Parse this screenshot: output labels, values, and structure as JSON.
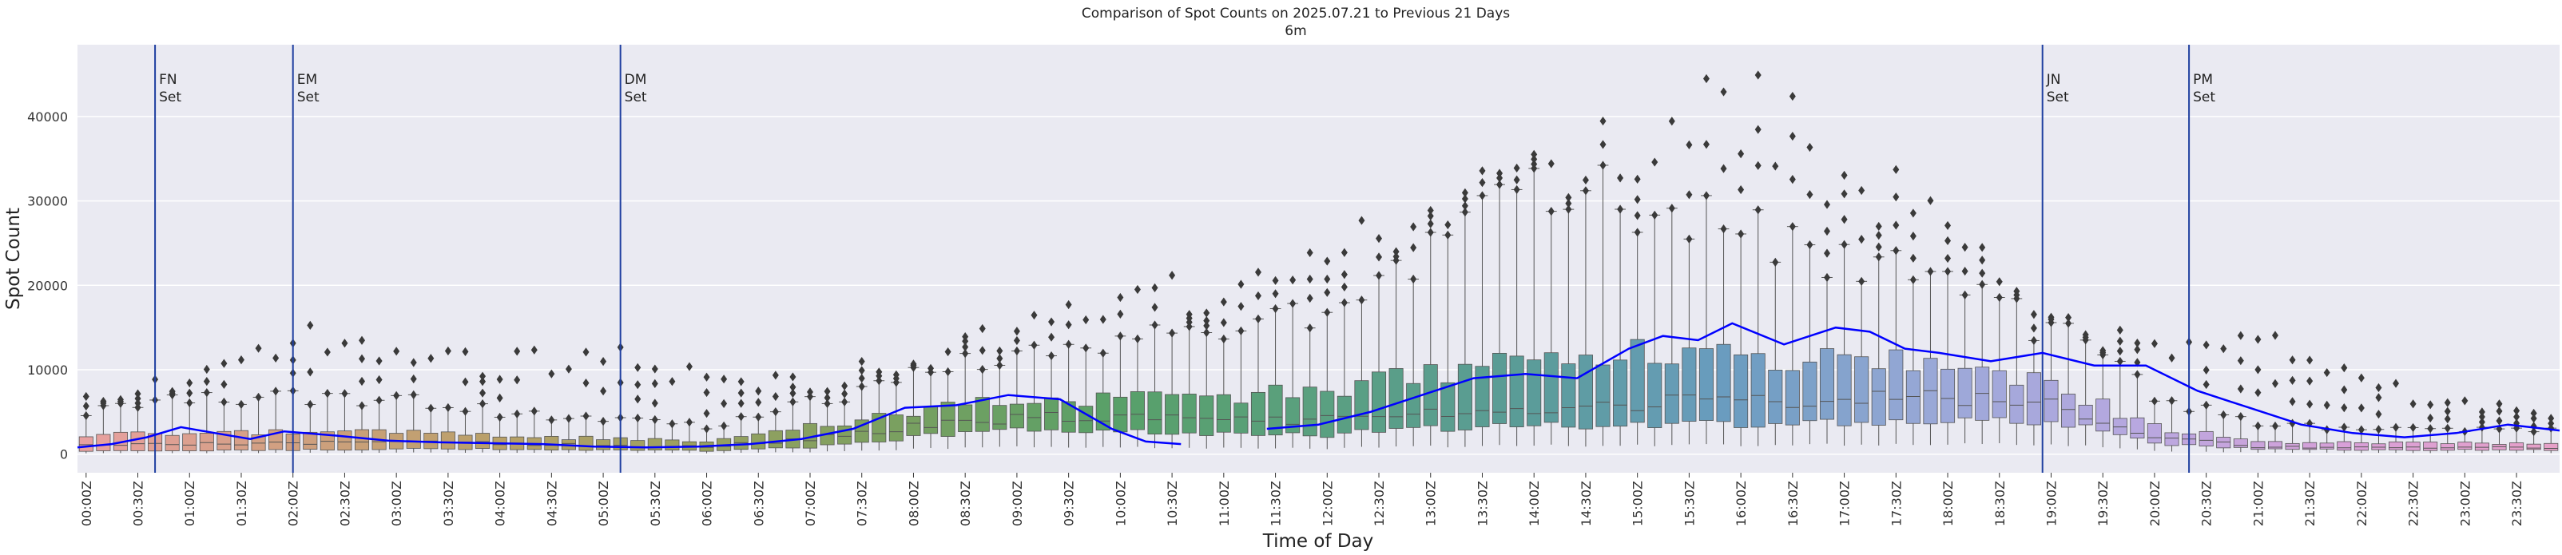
{
  "chart_data": {
    "type": "box",
    "title": "Comparison of Spot Counts on 2025.07.21 to Previous 21 Days",
    "subtitle": "6m",
    "xlabel": "Time of Day",
    "ylabel": "Spot Count",
    "ylim": [
      -2200,
      48500
    ],
    "yticks": [
      0,
      10000,
      20000,
      30000,
      40000
    ],
    "x_interval_minutes": 10,
    "x_tick_labels": [
      "00:00Z",
      "00:30Z",
      "01:00Z",
      "01:30Z",
      "02:00Z",
      "02:30Z",
      "03:00Z",
      "03:30Z",
      "04:00Z",
      "04:30Z",
      "05:00Z",
      "05:30Z",
      "06:00Z",
      "06:30Z",
      "07:00Z",
      "07:30Z",
      "08:00Z",
      "08:30Z",
      "09:00Z",
      "09:30Z",
      "10:00Z",
      "10:30Z",
      "11:00Z",
      "11:30Z",
      "12:00Z",
      "12:30Z",
      "13:00Z",
      "13:30Z",
      "14:00Z",
      "14:30Z",
      "15:00Z",
      "15:30Z",
      "16:00Z",
      "16:30Z",
      "17:00Z",
      "17:30Z",
      "18:00Z",
      "18:30Z",
      "19:00Z",
      "19:30Z",
      "20:00Z",
      "20:30Z",
      "21:00Z",
      "21:30Z",
      "22:00Z",
      "22:30Z",
      "23:00Z",
      "23:30Z"
    ],
    "grid": true,
    "background": "#eaeaf2",
    "line_color": "#0000ff",
    "box_colors": [
      "#e8a0a0",
      "#d0a080",
      "#b8a068",
      "#98a060",
      "#78a060",
      "#58a068",
      "#5aa080",
      "#5a9c98",
      "#6a9cc0",
      "#9aa8d8",
      "#b8a8e0",
      "#d8a0d8",
      "#e6a0c8"
    ],
    "events": [
      {
        "x_minutes": 45,
        "label": "FN\nSet"
      },
      {
        "x_minutes": 125,
        "label": "EM\nSet"
      },
      {
        "x_minutes": 315,
        "label": "DM\nSet"
      },
      {
        "x_minutes": 1225,
        "label": "PM\nSet"
      },
      {
        "x_minutes": 1145,
        "label": "JN\nSet",
        "override_hours": 19,
        "override_min": 0
      }
    ],
    "median_profile": {
      "x_hours": [
        0,
        1,
        2,
        3,
        4,
        5,
        6,
        7,
        8,
        9,
        10,
        11,
        12,
        13,
        14,
        15,
        16,
        17,
        18,
        19,
        20,
        21,
        22,
        23,
        24
      ],
      "q1": [
        400,
        400,
        500,
        600,
        600,
        500,
        400,
        800,
        2000,
        2800,
        2900,
        2300,
        2300,
        3000,
        3300,
        3600,
        3700,
        3900,
        4200,
        3900,
        1300,
        600,
        500,
        500,
        500
      ],
      "median": [
        1000,
        1200,
        1300,
        1400,
        1300,
        1000,
        900,
        1800,
        3300,
        4300,
        4500,
        4000,
        4000,
        5000,
        5600,
        6000,
        6400,
        6600,
        6700,
        5700,
        2000,
        900,
        800,
        800,
        800
      ],
      "q3": [
        2200,
        2500,
        2600,
        2600,
        2300,
        1800,
        1500,
        3200,
        5200,
        6500,
        6600,
        6800,
        7500,
        9500,
        11000,
        12000,
        11800,
        11200,
        10500,
        8500,
        3200,
        1500,
        1300,
        1300,
        1300
      ],
      "whisker_hi": [
        5000,
        6500,
        7000,
        6500,
        5000,
        4000,
        3500,
        6000,
        9500,
        12000,
        13000,
        15000,
        18000,
        25000,
        30000,
        30000,
        27000,
        24000,
        20000,
        15000,
        7000,
        3500,
        3000,
        3000,
        3000
      ],
      "outlier_hi": [
        6500,
        9000,
        14000,
        12500,
        11500,
        11500,
        9000,
        8500,
        11000,
        15000,
        18000,
        20000,
        24000,
        28000,
        33000,
        37000,
        42000,
        35000,
        26000,
        14000,
        13000,
        16000,
        8500,
        6000,
        5000
      ]
    },
    "current_day": {
      "x_hours": [
        0,
        0.33,
        0.67,
        1,
        1.33,
        1.67,
        2,
        2.5,
        3,
        3.5,
        4,
        4.5,
        5,
        5.5,
        6,
        6.5,
        7,
        7.5,
        8,
        8.5,
        9,
        9.5,
        10,
        10.33,
        10.67,
        11,
        11.5,
        12,
        12.5,
        13,
        13.5,
        14,
        14.5,
        15,
        15.33,
        15.67,
        16,
        16.5,
        17,
        17.33,
        17.67,
        18,
        18.5,
        19,
        19.5,
        20,
        20.5,
        21,
        21.5,
        22,
        22.5,
        23,
        23.5,
        24
      ],
      "values": [
        800,
        1200,
        2000,
        3200,
        2500,
        1800,
        2700,
        2200,
        1600,
        1400,
        1300,
        1200,
        900,
        800,
        900,
        1200,
        1800,
        3000,
        5500,
        5800,
        7000,
        6500,
        3000,
        1500,
        1200,
        null,
        3000,
        3500,
        5000,
        7000,
        9000,
        9500,
        9000,
        12500,
        14000,
        13500,
        15500,
        13000,
        15000,
        14500,
        12500,
        12000,
        11000,
        12000,
        10500,
        10500,
        7500,
        5500,
        3500,
        2500,
        2000,
        2500,
        3500,
        2800
      ]
    }
  }
}
